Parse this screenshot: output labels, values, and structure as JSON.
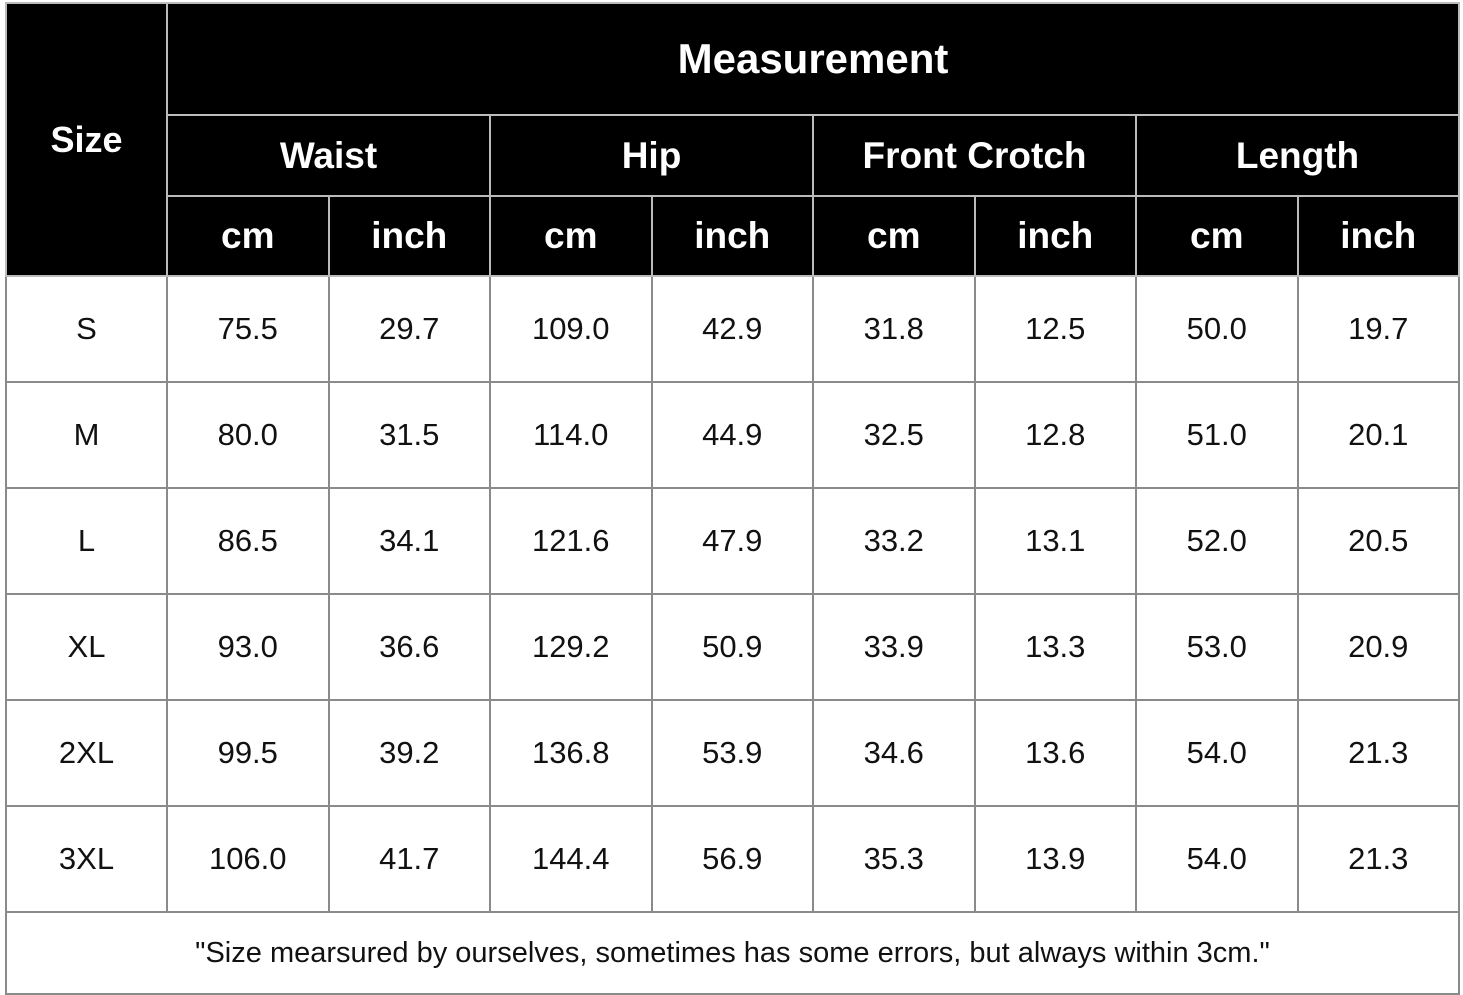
{
  "header": {
    "size": "Size",
    "measurement": "Measurement",
    "groups": [
      "Waist",
      "Hip",
      "Front Crotch",
      "Length"
    ],
    "units": [
      "cm",
      "inch",
      "cm",
      "inch",
      "cm",
      "inch",
      "cm",
      "inch"
    ]
  },
  "table": {
    "rows": [
      [
        "S",
        "75.5",
        "29.7",
        "109.0",
        "42.9",
        "31.8",
        "12.5",
        "50.0",
        "19.7"
      ],
      [
        "M",
        "80.0",
        "31.5",
        "114.0",
        "44.9",
        "32.5",
        "12.8",
        "51.0",
        "20.1"
      ],
      [
        "L",
        "86.5",
        "34.1",
        "121.6",
        "47.9",
        "33.2",
        "13.1",
        "52.0",
        "20.5"
      ],
      [
        "XL",
        "93.0",
        "36.6",
        "129.2",
        "50.9",
        "33.9",
        "13.3",
        "53.0",
        "20.9"
      ],
      [
        "2XL",
        "99.5",
        "39.2",
        "136.8",
        "53.9",
        "34.6",
        "13.6",
        "54.0",
        "21.3"
      ],
      [
        "3XL",
        "106.0",
        "41.7",
        "144.4",
        "56.9",
        "35.3",
        "13.9",
        "54.0",
        "21.3"
      ]
    ]
  },
  "note": "\"Size mearsured by ourselves, sometimes has some errors, but always within 3cm.\""
}
